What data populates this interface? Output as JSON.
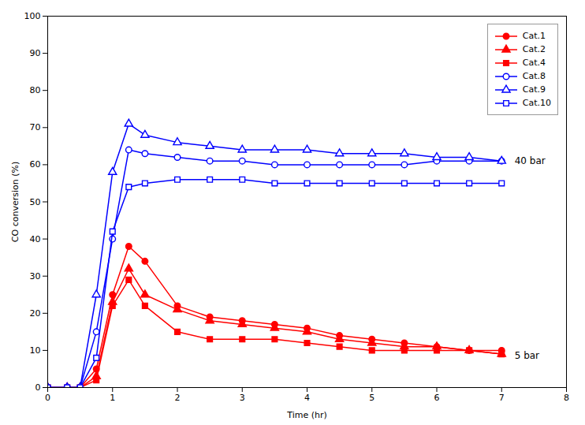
{
  "chart_data": {
    "type": "line",
    "title": "",
    "xlabel": "Time (hr)",
    "ylabel": "CO conversion (%)",
    "xlim": [
      0,
      8
    ],
    "ylim": [
      0,
      100
    ],
    "xticks": [
      0,
      1,
      2,
      3,
      4,
      5,
      6,
      7,
      8
    ],
    "yticks": [
      0,
      10,
      20,
      30,
      40,
      50,
      60,
      70,
      80,
      90,
      100
    ],
    "grid": false,
    "legend": "upper right",
    "annotations": [
      {
        "x": 7.2,
        "y": 61,
        "text": "40 bar"
      },
      {
        "x": 7.2,
        "y": 8.5,
        "text": "5 bar"
      }
    ],
    "series": [
      {
        "name": "Cat.1",
        "color": "#FF0000",
        "marker": "circle",
        "x": [
          0,
          0.3,
          0.5,
          0.75,
          1.0,
          1.25,
          1.5,
          2.0,
          2.5,
          3.0,
          3.5,
          4.0,
          4.5,
          5.0,
          5.5,
          6.0,
          6.5,
          7.0
        ],
        "values": [
          0,
          0,
          0,
          5,
          25,
          38,
          34,
          22,
          19,
          18,
          17,
          16,
          14,
          13,
          12,
          11,
          10,
          10
        ]
      },
      {
        "name": "Cat.2",
        "color": "#FF0000",
        "marker": "triangle",
        "x": [
          0,
          0.3,
          0.5,
          0.75,
          1.0,
          1.25,
          1.5,
          2.0,
          2.5,
          3.0,
          3.5,
          4.0,
          4.5,
          5.0,
          5.5,
          6.0,
          6.5,
          7.0
        ],
        "values": [
          0,
          0,
          0,
          3,
          23,
          32,
          25,
          21,
          18,
          17,
          16,
          15,
          13,
          12,
          11,
          11,
          10,
          9
        ]
      },
      {
        "name": "Cat.4",
        "color": "#FF0000",
        "marker": "square",
        "x": [
          0,
          0.3,
          0.5,
          0.75,
          1.0,
          1.25,
          1.5,
          2.0,
          2.5,
          3.0,
          3.5,
          4.0,
          4.5,
          5.0,
          5.5,
          6.0,
          6.5,
          7.0
        ],
        "values": [
          0,
          0,
          0,
          2,
          22,
          29,
          22,
          15,
          13,
          13,
          13,
          12,
          11,
          10,
          10,
          10,
          10,
          9
        ]
      },
      {
        "name": "Cat.8",
        "color": "#0000FF",
        "marker": "circle-open",
        "x": [
          0,
          0.3,
          0.5,
          0.75,
          1.0,
          1.25,
          1.5,
          2.0,
          2.5,
          3.0,
          3.5,
          4.0,
          4.5,
          5.0,
          5.5,
          6.0,
          6.5,
          7.0
        ],
        "values": [
          0,
          0,
          0,
          15,
          40,
          64,
          63,
          62,
          61,
          61,
          60,
          60,
          60,
          60,
          60,
          61,
          61,
          61
        ]
      },
      {
        "name": "Cat.9",
        "color": "#0000FF",
        "marker": "triangle-open",
        "x": [
          0,
          0.3,
          0.5,
          0.75,
          1.0,
          1.25,
          1.5,
          2.0,
          2.5,
          3.0,
          3.5,
          4.0,
          4.5,
          5.0,
          5.5,
          6.0,
          6.5,
          7.0
        ],
        "values": [
          0,
          0,
          0,
          25,
          58,
          71,
          68,
          66,
          65,
          64,
          64,
          64,
          63,
          63,
          63,
          62,
          62,
          61
        ]
      },
      {
        "name": "Cat.10",
        "color": "#0000FF",
        "marker": "square-open",
        "x": [
          0,
          0.3,
          0.5,
          0.75,
          1.0,
          1.25,
          1.5,
          2.0,
          2.5,
          3.0,
          3.5,
          4.0,
          4.5,
          5.0,
          5.5,
          6.0,
          6.5,
          7.0
        ],
        "values": [
          0,
          0,
          0,
          8,
          42,
          54,
          55,
          56,
          56,
          56,
          55,
          55,
          55,
          55,
          55,
          55,
          55,
          55
        ]
      }
    ]
  }
}
